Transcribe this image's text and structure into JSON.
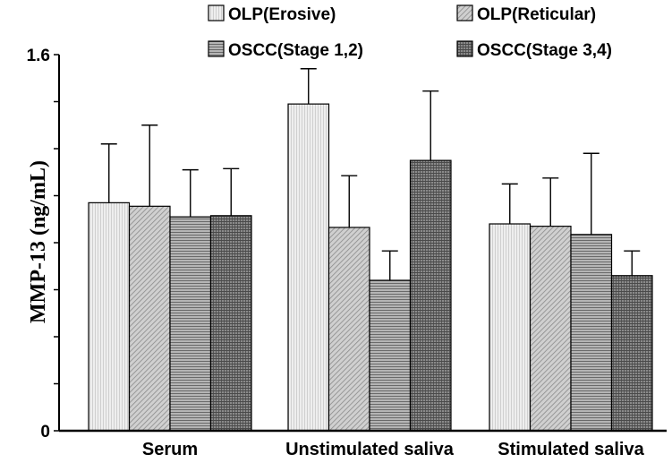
{
  "chart_data": {
    "type": "bar",
    "ylabel": "MMP-13 (ng/mL)",
    "ylim": [
      0,
      1.6
    ],
    "y_tick_labels": [
      "0",
      "1.6"
    ],
    "categories": [
      "Serum",
      "Unstimulated saliva",
      "Stimulated saliva"
    ],
    "error_bars": "upper",
    "legend_placement": "top",
    "series": [
      {
        "name": "OLP(Erosive)",
        "values": [
          0.97,
          1.39,
          0.88
        ],
        "errors": [
          0.25,
          0.15,
          0.17
        ],
        "color": "#e6e6e6",
        "pattern": "light-vertical"
      },
      {
        "name": "OLP(Reticular)",
        "values": [
          0.955,
          0.865,
          0.87
        ],
        "errors": [
          0.345,
          0.22,
          0.205
        ],
        "color": "#bdbdbd",
        "pattern": "diagonal"
      },
      {
        "name": "OSCC(Stage 1,2)",
        "values": [
          0.91,
          0.64,
          0.835
        ],
        "errors": [
          0.2,
          0.125,
          0.345
        ],
        "color": "#9a9a9a",
        "pattern": "horizontal"
      },
      {
        "name": "OSCC(Stage 3,4)",
        "values": [
          0.915,
          1.15,
          0.66
        ],
        "errors": [
          0.2,
          0.295,
          0.105
        ],
        "color": "#7a7a7a",
        "pattern": "crosshatch"
      }
    ]
  }
}
